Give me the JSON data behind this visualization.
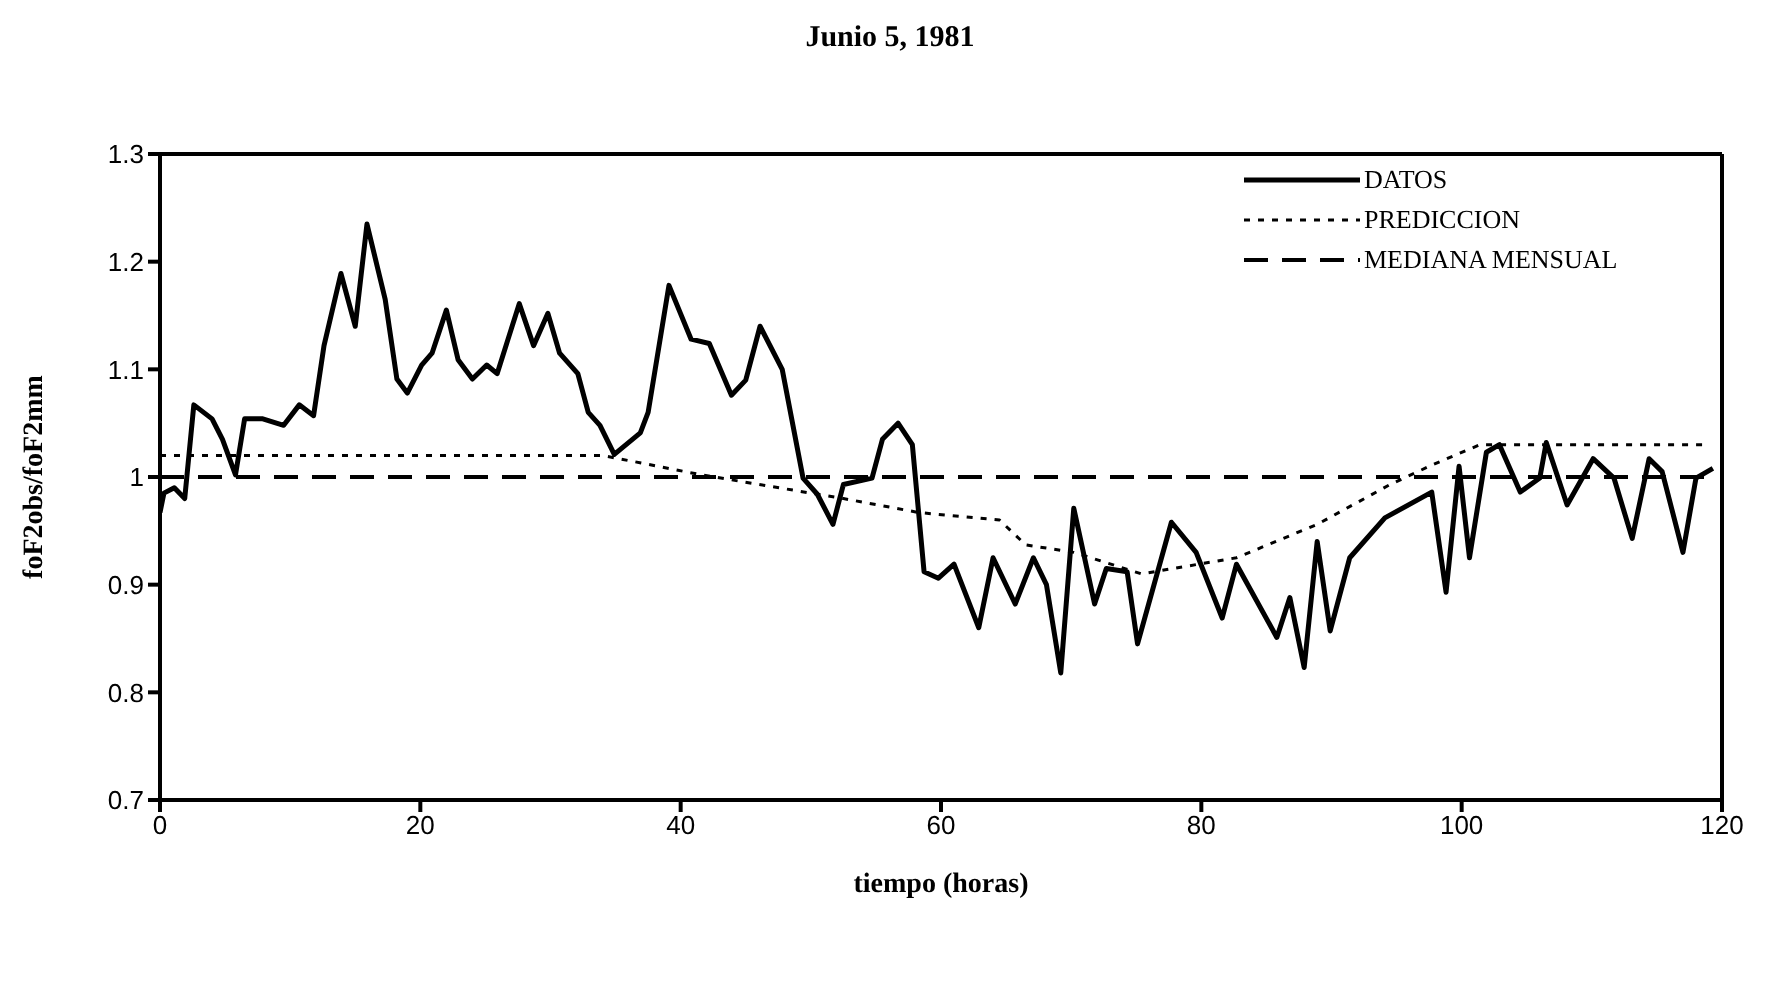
{
  "chart_data": {
    "type": "line",
    "title": "Junio 5, 1981",
    "xlabel": "tiempo (horas)",
    "ylabel": "foF2obs/foF2mm",
    "xlim": [
      0,
      120
    ],
    "xticks": [
      0,
      20,
      40,
      60,
      80,
      100,
      120
    ],
    "ylim": [
      0.7,
      1.3
    ],
    "yticks": [
      0.7,
      0.8,
      0.9,
      1,
      1.1,
      1.2,
      1.3
    ],
    "legend": "top right",
    "series": [
      {
        "name": "DATOS",
        "color": "#000000",
        "line_style": "solid",
        "x": [
          0,
          0.3,
          1.1,
          1.9,
          2.6,
          4,
          4.8,
          5.8,
          6.5,
          7.9,
          9.5,
          10.7,
          11.8,
          12.6,
          13.9,
          15,
          15.9,
          17.3,
          18.2,
          19,
          20.1,
          20.9,
          22,
          22.9,
          24,
          25.1,
          25.9,
          27.6,
          28.7,
          29.8,
          30.7,
          32.1,
          32.9,
          33.8,
          34.9,
          36.9,
          37.5,
          39.1,
          40.8,
          42.2,
          43.9,
          45,
          46.1,
          47.8,
          49.4,
          50.5,
          51.7,
          52.5,
          54.7,
          55.5,
          56.7,
          57.8,
          58.7,
          59.8,
          61,
          62.9,
          64,
          65.7,
          67.1,
          68.1,
          69.2,
          70.2,
          71.8,
          72.7,
          74.3,
          75.1,
          77.7,
          79.6,
          81.6,
          82.7,
          85.8,
          86.8,
          87.9,
          88.9,
          89.9,
          91.4,
          94.1,
          97.7,
          98.8,
          99.8,
          100.6,
          101.9,
          102.9,
          104.5,
          106,
          106.5,
          108.1,
          110.1,
          111.7,
          113.1,
          114.4,
          115.4,
          117,
          118,
          119.3
        ],
        "values": [
          0.967,
          0.985,
          0.99,
          0.98,
          1.067,
          1.054,
          1.035,
          1.002,
          1.054,
          1.054,
          1.048,
          1.067,
          1.057,
          1.122,
          1.189,
          1.14,
          1.235,
          1.165,
          1.091,
          1.078,
          1.104,
          1.115,
          1.155,
          1.109,
          1.091,
          1.104,
          1.096,
          1.161,
          1.122,
          1.152,
          1.115,
          1.096,
          1.06,
          1.048,
          1.021,
          1.041,
          1.06,
          1.178,
          1.128,
          1.124,
          1.076,
          1.09,
          1.14,
          1.1,
          0.999,
          0.984,
          0.956,
          0.993,
          0.999,
          1.035,
          1.05,
          1.03,
          0.912,
          0.906,
          0.919,
          0.86,
          0.925,
          0.882,
          0.925,
          0.9,
          0.818,
          0.971,
          0.882,
          0.915,
          0.912,
          0.845,
          0.958,
          0.93,
          0.869,
          0.919,
          0.851,
          0.888,
          0.823,
          0.94,
          0.857,
          0.925,
          0.962,
          0.986,
          0.893,
          1.01,
          0.925,
          1.023,
          1.03,
          0.986,
          0.999,
          1.032,
          0.974,
          1.017,
          0.999,
          0.943,
          1.017,
          1.005,
          0.93,
          0.999,
          1.008
        ]
      },
      {
        "name": "PREDICCION",
        "color": "#000000",
        "line_style": "dotted",
        "x": [
          0,
          34,
          41.6,
          52.5,
          58.3,
          64.5,
          66.5,
          70.2,
          75.4,
          82.7,
          88.9,
          94.5,
          97.7,
          101.4,
          118.5
        ],
        "values": [
          1.02,
          1.02,
          1.002,
          0.98,
          0.967,
          0.96,
          0.937,
          0.93,
          0.91,
          0.925,
          0.956,
          0.993,
          1.011,
          1.03,
          1.03
        ]
      },
      {
        "name": "MEDIANA MENSUAL",
        "color": "#000000",
        "line_style": "dashed",
        "x": [
          0,
          119.5
        ],
        "values": [
          1,
          1
        ]
      }
    ]
  }
}
